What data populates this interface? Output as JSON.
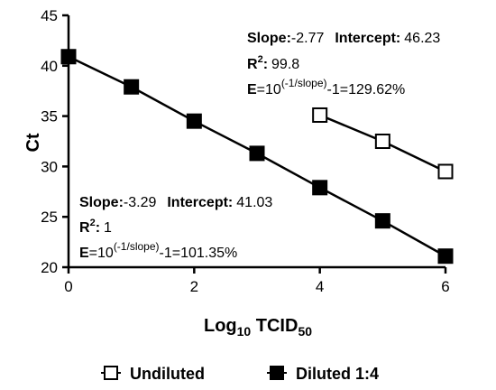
{
  "chart_data": {
    "type": "scatter",
    "xlabel": "Log",
    "xlabel_sub": "10",
    "xlabel_rest": " TCID",
    "xlabel_sub2": "50",
    "ylabel": "Ct",
    "xlim": [
      0,
      6
    ],
    "ylim": [
      20,
      45
    ],
    "x_ticks": [
      "0",
      "2",
      "4",
      "6"
    ],
    "y_ticks": [
      "20",
      "25",
      "30",
      "35",
      "40",
      "45"
    ],
    "grid": false,
    "legend_position": "bottom",
    "series": [
      {
        "name": "Undiluted",
        "marker": "open-square",
        "x": [
          4,
          5,
          6
        ],
        "y": [
          35.1,
          32.5,
          29.5
        ]
      },
      {
        "name": "Diluted 1:4",
        "marker": "filled-square",
        "x": [
          0,
          1,
          2,
          3,
          4,
          5,
          6
        ],
        "y": [
          40.9,
          37.9,
          34.5,
          31.3,
          27.9,
          24.6,
          21.1
        ]
      }
    ],
    "annotations": {
      "undiluted": {
        "slope_label": "Slope:",
        "slope_value": "-2.77",
        "intercept_label": "Intercept:",
        "intercept_value": "46.23",
        "r2_label": "R",
        "r2_sup": "2",
        "r2_colon": ":",
        "r2_value": "99.8",
        "e_label": "E",
        "e_eq": "=10",
        "e_exp": "(-1/slope)",
        "e_rest": "-1=129.62%"
      },
      "diluted": {
        "slope_label": "Slope:",
        "slope_value": "-3.29",
        "intercept_label": "Intercept:",
        "intercept_value": "41.03",
        "r2_label": "R",
        "r2_sup": "2",
        "r2_colon": ":",
        "r2_value": "1",
        "e_label": "E",
        "e_eq": "=10",
        "e_exp": "(-1/slope)",
        "e_rest": "-1=101.35%"
      }
    }
  }
}
